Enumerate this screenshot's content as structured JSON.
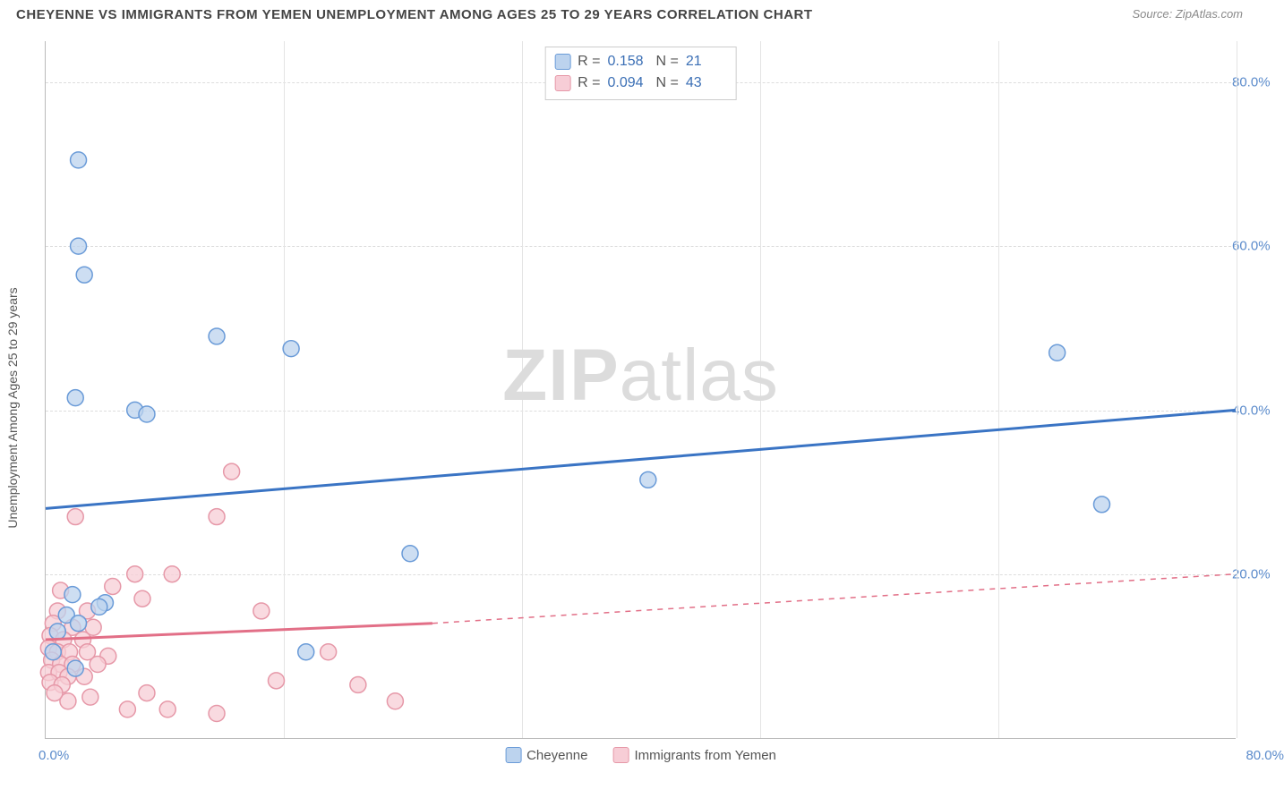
{
  "title": "CHEYENNE VS IMMIGRANTS FROM YEMEN UNEMPLOYMENT AMONG AGES 25 TO 29 YEARS CORRELATION CHART",
  "source": "Source: ZipAtlas.com",
  "watermark_a": "ZIP",
  "watermark_b": "atlas",
  "y_axis_label": "Unemployment Among Ages 25 to 29 years",
  "chart": {
    "type": "scatter",
    "xlim": [
      0,
      80
    ],
    "ylim": [
      0,
      85
    ],
    "y_ticks": [
      20,
      40,
      60,
      80
    ],
    "y_tick_labels": [
      "20.0%",
      "40.0%",
      "60.0%",
      "80.0%"
    ],
    "x_tick_min_label": "0.0%",
    "x_tick_max_label": "80.0%",
    "grid_v_positions": [
      16,
      32,
      48,
      64,
      80
    ],
    "background_color": "#ffffff",
    "grid_color": "#e0e0e0",
    "marker_radius": 9,
    "marker_stroke_width": 1.5,
    "trend_line_width": 3
  },
  "series": {
    "cheyenne": {
      "label": "Cheyenne",
      "fill": "#bcd3ee",
      "stroke": "#6a9bd8",
      "line_color": "#3a74c4",
      "R": "0.158",
      "N": "21",
      "trend": {
        "x1": 0,
        "y1": 28,
        "x2": 80,
        "y2": 40,
        "dash": "none"
      },
      "points": [
        [
          2.2,
          70.5
        ],
        [
          2.2,
          60.0
        ],
        [
          2.6,
          56.5
        ],
        [
          11.5,
          49.0
        ],
        [
          2.0,
          41.5
        ],
        [
          6.0,
          40.0
        ],
        [
          6.8,
          39.5
        ],
        [
          40.5,
          31.5
        ],
        [
          68.0,
          47.0
        ],
        [
          71.0,
          28.5
        ],
        [
          24.5,
          22.5
        ],
        [
          17.5,
          10.5
        ],
        [
          1.8,
          17.5
        ],
        [
          4.0,
          16.5
        ],
        [
          1.4,
          15.0
        ],
        [
          2.2,
          14.0
        ],
        [
          3.6,
          16.0
        ],
        [
          0.5,
          10.5
        ],
        [
          2.0,
          8.5
        ],
        [
          16.5,
          47.5
        ],
        [
          0.8,
          13.0
        ]
      ]
    },
    "yemen": {
      "label": "Immigrants from Yemen",
      "fill": "#f7cdd6",
      "stroke": "#e698a8",
      "line_color": "#e26f87",
      "R": "0.094",
      "N": "43",
      "trend_solid": {
        "x1": 0,
        "y1": 12,
        "x2": 26,
        "y2": 14
      },
      "trend_dash": {
        "x1": 26,
        "y1": 14,
        "x2": 80,
        "y2": 20
      },
      "points": [
        [
          12.5,
          32.5
        ],
        [
          2.0,
          27.0
        ],
        [
          11.5,
          27.0
        ],
        [
          6.0,
          20.0
        ],
        [
          8.5,
          20.0
        ],
        [
          4.5,
          18.5
        ],
        [
          1.0,
          18.0
        ],
        [
          6.5,
          17.0
        ],
        [
          0.8,
          15.5
        ],
        [
          2.8,
          15.5
        ],
        [
          14.5,
          15.5
        ],
        [
          0.5,
          14.0
        ],
        [
          1.8,
          13.5
        ],
        [
          3.2,
          13.5
        ],
        [
          0.3,
          12.5
        ],
        [
          1.2,
          12.0
        ],
        [
          2.5,
          12.0
        ],
        [
          0.2,
          11.0
        ],
        [
          0.8,
          10.5
        ],
        [
          1.6,
          10.5
        ],
        [
          2.8,
          10.5
        ],
        [
          4.2,
          10.0
        ],
        [
          19.0,
          10.5
        ],
        [
          0.4,
          9.5
        ],
        [
          1.0,
          9.0
        ],
        [
          1.8,
          9.0
        ],
        [
          3.5,
          9.0
        ],
        [
          0.2,
          8.0
        ],
        [
          0.9,
          8.0
        ],
        [
          1.5,
          7.5
        ],
        [
          2.6,
          7.5
        ],
        [
          0.3,
          6.8
        ],
        [
          1.1,
          6.5
        ],
        [
          6.8,
          5.5
        ],
        [
          15.5,
          7.0
        ],
        [
          21.0,
          6.5
        ],
        [
          23.5,
          4.5
        ],
        [
          5.5,
          3.5
        ],
        [
          8.2,
          3.5
        ],
        [
          11.5,
          3.0
        ],
        [
          1.5,
          4.5
        ],
        [
          0.6,
          5.5
        ],
        [
          3.0,
          5.0
        ]
      ]
    }
  },
  "stats_legend": {
    "r_label": "R  =",
    "n_label": "N  ="
  }
}
